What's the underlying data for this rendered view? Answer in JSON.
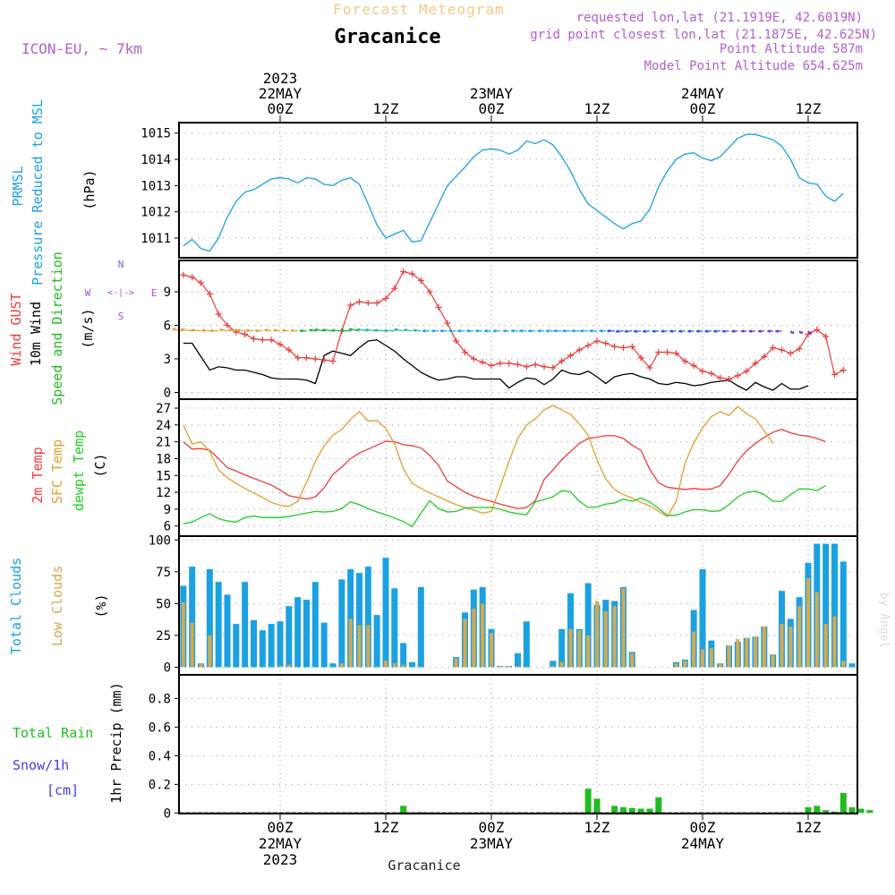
{
  "header": {
    "product": "Forecast Meteogram",
    "location": "Gracanice",
    "model": "ICON-EU, ~ 7km",
    "requested": "requested lon,lat (21.1919E, 42.6019N)",
    "gridpoint": "grid point closest lon,lat (21.1875E, 42.625N)",
    "point_alt": "Point Altitude 587m",
    "model_alt": "Model Point Altitude 654.625m",
    "footer_location": "Gracanice",
    "watermark": "by Angel"
  },
  "colors": {
    "pressure": "#1ba1e2",
    "gust": "#ee3b3b",
    "wind": "#000000",
    "windtext": "#22bb22",
    "temp2m": "#ee3b3b",
    "sfctemp": "#e0a030",
    "dewpt": "#22cc22",
    "totalcloud": "#1ba1e2",
    "lowcloud": "#d4aa50",
    "rain": "#22bb22",
    "snow": "#4040ee",
    "header": "#b060d0",
    "title_faint": "#f0cc88",
    "compass": "#a050e0"
  },
  "time_axis": {
    "top": [
      {
        "x": 0,
        "lines": [
          "2023",
          "22MAY",
          "00Z"
        ]
      },
      {
        "x": 12,
        "lines": [
          "12Z"
        ]
      },
      {
        "x": 24,
        "lines": [
          "23MAY",
          "00Z"
        ]
      },
      {
        "x": 36,
        "lines": [
          "12Z"
        ]
      },
      {
        "x": 48,
        "lines": [
          "24MAY",
          "00Z"
        ]
      },
      {
        "x": 60,
        "lines": [
          "12Z"
        ]
      }
    ],
    "bottom": [
      {
        "x": 0,
        "lines": [
          "00Z",
          "22MAY",
          "2023"
        ]
      },
      {
        "x": 12,
        "lines": [
          "12Z"
        ]
      },
      {
        "x": 24,
        "lines": [
          "00Z",
          "23MAY"
        ]
      },
      {
        "x": 36,
        "lines": [
          "12Z"
        ]
      },
      {
        "x": 48,
        "lines": [
          "00Z",
          "24MAY"
        ]
      },
      {
        "x": 60,
        "lines": [
          "12Z"
        ]
      }
    ]
  },
  "compass": {
    "north": "N",
    "south": "S",
    "west": "W",
    "east": "E"
  },
  "chart_data": [
    {
      "type": "line",
      "id": "pressure",
      "ylabel": [
        "PRMSL",
        "Pressure Reduced to MSL"
      ],
      "unit": "(hPa)",
      "yticks": [
        1011,
        1012,
        1013,
        1014,
        1015
      ],
      "ylim": [
        1010.25,
        1015.4
      ],
      "x_start": -11,
      "x_step": 1,
      "series": [
        {
          "values": [
            1010.7,
            1010.95,
            1010.6,
            1010.5,
            1011.0,
            1011.8,
            1012.4,
            1012.75,
            1012.85,
            1013.05,
            1013.25,
            1013.3,
            1013.25,
            1013.1,
            1013.3,
            1013.25,
            1013.05,
            1013.0,
            1013.2,
            1013.3,
            1013.05,
            1012.3,
            1011.5,
            1011.0,
            1011.15,
            1011.3,
            1010.85,
            1010.9,
            1011.6,
            1012.3,
            1013.0,
            1013.35,
            1013.7,
            1014.1,
            1014.35,
            1014.4,
            1014.35,
            1014.2,
            1014.35,
            1014.7,
            1014.6,
            1014.75,
            1014.55,
            1014.1,
            1013.55,
            1012.85,
            1012.3,
            1012.05,
            1011.8,
            1011.55,
            1011.35,
            1011.55,
            1011.65,
            1012.1,
            1012.95,
            1013.55,
            1014.0,
            1014.2,
            1014.25,
            1014.05,
            1013.95,
            1014.1,
            1014.45,
            1014.8,
            1014.95,
            1014.95,
            1014.85,
            1014.75,
            1014.5,
            1014.0,
            1013.3,
            1013.1,
            1013.05,
            1012.6,
            1012.4,
            1012.7
          ]
        }
      ]
    },
    {
      "type": "line",
      "id": "wind",
      "ylabel": [
        "Wind GUST",
        "10m Wind",
        "Speed and Direction"
      ],
      "unit": "(m/s)",
      "yticks": [
        0,
        3,
        6,
        9
      ],
      "ylim": [
        -0.6,
        11.8
      ],
      "x_start": -11,
      "x_step": 1,
      "series": [
        {
          "name": "Wind GUST",
          "values": [
            10.5,
            10.3,
            9.8,
            8.8,
            7.0,
            6.0,
            5.4,
            5.2,
            4.8,
            4.7,
            4.7,
            4.3,
            3.8,
            3.1,
            3.1,
            3.0,
            2.9,
            2.8,
            5.5,
            7.8,
            8.1,
            8.0,
            8.0,
            8.4,
            9.3,
            10.8,
            10.6,
            10.0,
            9.0,
            7.6,
            6.2,
            4.6,
            3.6,
            3.0,
            2.7,
            2.4,
            2.6,
            2.6,
            2.5,
            2.3,
            2.5,
            2.3,
            2.2,
            2.8,
            3.3,
            3.8,
            4.2,
            4.6,
            4.4,
            4.1,
            4.0,
            4.1,
            3.1,
            2.2,
            3.6,
            3.6,
            3.5,
            2.8,
            2.4,
            1.9,
            1.7,
            1.3,
            1.2,
            1.5,
            1.9,
            2.6,
            3.2,
            4.0,
            3.8,
            3.5,
            3.9,
            5.2,
            5.6,
            5.0,
            1.6,
            2.0
          ]
        },
        {
          "name": "10m Wind",
          "values": [
            4.4,
            4.4,
            3.2,
            2.0,
            2.3,
            2.2,
            2.0,
            2.0,
            1.8,
            1.6,
            1.3,
            1.2,
            1.2,
            1.2,
            1.1,
            0.8,
            3.3,
            3.7,
            3.5,
            3.3,
            4.0,
            4.6,
            4.7,
            4.2,
            3.7,
            3.0,
            2.4,
            1.8,
            1.4,
            1.1,
            1.2,
            1.4,
            1.4,
            1.2,
            1.2,
            1.2,
            1.2,
            0.4,
            0.9,
            1.3,
            1.2,
            0.7,
            1.2,
            2.0,
            1.7,
            1.6,
            1.9,
            1.4,
            0.8,
            1.4,
            1.6,
            1.7,
            1.4,
            1.2,
            0.8,
            0.7,
            0.9,
            0.8,
            0.6,
            0.7,
            0.9,
            1.0,
            1.1,
            0.6,
            0.2,
            0.9,
            0.5,
            0.2,
            0.8,
            0.3,
            0.3,
            0.6
          ]
        },
        {
          "name": "Speed and Direction",
          "values": [
            null
          ]
        }
      ]
    },
    {
      "type": "line",
      "id": "temperature",
      "ylabel": [
        "2m Temp",
        "SFC Temp",
        "dewpt Temp"
      ],
      "unit": "(C)",
      "yticks": [
        6,
        9,
        12,
        15,
        18,
        21,
        24,
        27
      ],
      "ylim": [
        4.2,
        28.6
      ],
      "x_start": -11,
      "x_step": 1,
      "series": [
        {
          "name": "2m Temp",
          "values": [
            21.0,
            19.7,
            19.8,
            19.5,
            18.0,
            16.4,
            15.8,
            15.1,
            14.5,
            13.9,
            13.3,
            12.4,
            11.4,
            11.1,
            10.8,
            11.2,
            12.8,
            15.2,
            16.5,
            18.0,
            19.0,
            19.7,
            20.4,
            21.1,
            21.0,
            20.5,
            20.3,
            19.9,
            18.6,
            16.8,
            14.0,
            13.0,
            12.0,
            11.3,
            10.8,
            10.4,
            9.9,
            9.5,
            9.1,
            9.3,
            10.5,
            14.3,
            16.0,
            17.8,
            19.3,
            20.7,
            21.6,
            21.8,
            22.1,
            22.1,
            21.6,
            20.4,
            19.5,
            16.1,
            13.7,
            12.9,
            12.7,
            12.5,
            12.7,
            12.5,
            12.6,
            13.2,
            15.2,
            17.6,
            19.4,
            20.7,
            21.8,
            22.7,
            23.2,
            22.6,
            22.2,
            22.0,
            21.6,
            21.0
          ]
        },
        {
          "name": "SFC Temp",
          "values": [
            24.0,
            20.6,
            21.0,
            19.3,
            16.0,
            14.6,
            13.6,
            12.7,
            11.9,
            11.1,
            10.2,
            9.7,
            9.5,
            10.4,
            13.8,
            17.5,
            20.3,
            22.2,
            23.2,
            25.0,
            26.4,
            24.7,
            24.8,
            23.4,
            20.7,
            16.2,
            13.6,
            12.7,
            11.9,
            11.2,
            10.5,
            9.8,
            9.3,
            8.8,
            8.3,
            8.6,
            13.0,
            17.5,
            21.6,
            24.0,
            25.1,
            26.7,
            27.5,
            26.7,
            25.9,
            24.2,
            22.2,
            17.8,
            14.4,
            12.5,
            11.6,
            11.0,
            10.2,
            9.6,
            8.6,
            7.7,
            10.4,
            17.2,
            20.8,
            23.5,
            25.5,
            26.4,
            25.7,
            27.3,
            26.0,
            25.1,
            23.0,
            20.7
          ]
        },
        {
          "name": "dewpt Temp",
          "values": [
            6.4,
            6.7,
            7.5,
            8.2,
            7.3,
            6.9,
            6.7,
            7.5,
            7.8,
            7.5,
            7.5,
            7.5,
            7.7,
            8.0,
            8.3,
            8.6,
            8.5,
            8.6,
            9.1,
            10.3,
            9.8,
            9.1,
            8.5,
            8.0,
            7.4,
            6.8,
            5.9,
            8.3,
            10.5,
            9.1,
            8.5,
            8.6,
            9.2,
            9.3,
            9.3,
            9.3,
            9.0,
            8.5,
            8.2,
            8.0,
            10.3,
            10.7,
            11.2,
            12.3,
            12.1,
            10.4,
            9.3,
            9.4,
            9.9,
            10.1,
            10.8,
            10.4,
            11.0,
            10.3,
            9.1,
            7.9,
            7.9,
            8.5,
            8.9,
            8.9,
            8.6,
            8.7,
            9.8,
            11.2,
            12.0,
            12.2,
            11.6,
            10.4,
            10.4,
            11.6,
            12.6,
            12.6,
            12.3,
            13.2
          ]
        }
      ]
    },
    {
      "type": "bar",
      "id": "clouds",
      "ylabel": [
        "Total Clouds",
        "Low Clouds"
      ],
      "unit": "(%)",
      "yticks": [
        0,
        25,
        50,
        75,
        100
      ],
      "ylim": [
        -6,
        103
      ],
      "x_start": -11,
      "x_step": 1,
      "series": [
        {
          "name": "Total Clouds",
          "values": [
            64,
            79,
            3,
            77,
            67,
            57,
            34,
            67,
            37,
            29,
            34,
            36,
            48,
            55,
            53,
            67,
            35,
            3,
            69,
            77,
            74,
            79,
            41,
            86,
            62,
            19,
            4,
            63,
            0,
            0,
            0,
            8,
            43,
            61,
            63,
            30,
            1,
            1,
            11,
            36,
            0,
            0,
            5,
            30,
            58,
            30,
            66,
            49,
            53,
            52,
            63,
            12,
            0,
            0,
            0,
            0,
            4,
            6,
            45,
            77,
            21,
            3,
            17,
            20,
            23,
            24,
            32,
            10,
            60,
            38,
            55,
            82,
            97,
            97,
            97,
            83,
            3
          ]
        },
        {
          "name": "Low Clouds",
          "values": [
            51,
            35,
            3,
            25,
            0,
            0,
            0,
            0,
            0,
            0,
            0,
            1,
            2,
            0,
            0,
            0,
            0,
            0,
            3,
            38,
            33,
            33,
            0,
            5,
            3,
            2,
            0,
            0,
            0,
            0,
            0,
            7,
            38,
            46,
            50,
            27,
            1,
            1,
            1,
            0,
            0,
            0,
            1,
            4,
            30,
            29,
            25,
            52,
            44,
            48,
            62,
            11,
            0,
            0,
            0,
            0,
            3,
            5,
            28,
            14,
            15,
            3,
            17,
            22,
            23,
            24,
            32,
            10,
            34,
            32,
            48,
            70,
            59,
            34,
            40,
            5,
            0
          ]
        }
      ]
    },
    {
      "type": "bar",
      "id": "precip",
      "ylabel": [
        "1hr Precip (mm)"
      ],
      "legend": [
        "Total Rain",
        "Snow/1h",
        "[cm]"
      ],
      "unit": "",
      "yticks": [
        0,
        0.2,
        0.4,
        0.6,
        0.8
      ],
      "ylim": [
        -0.004,
        0.965
      ],
      "x_start": -11,
      "x_step": 1,
      "series": [
        {
          "name": "Total Rain",
          "values": [
            0,
            0,
            0,
            0,
            0,
            0,
            0,
            0,
            0,
            0,
            0,
            0,
            0,
            0,
            0,
            0,
            0,
            0,
            0,
            0,
            0,
            0,
            0,
            0,
            0,
            0.05,
            0,
            0.005,
            0,
            0,
            0,
            0,
            0,
            0,
            0,
            0,
            0,
            0,
            0,
            0,
            0,
            0,
            0,
            0,
            0,
            0,
            0.17,
            0.1,
            0,
            0.05,
            0.04,
            0.035,
            0.03,
            0.03,
            0.11,
            0,
            0,
            0,
            0,
            0,
            0,
            0,
            0,
            0,
            0,
            0,
            0,
            0,
            0,
            0,
            0,
            0.04,
            0.05,
            0.02,
            0.01,
            0.14,
            0.04,
            0.03,
            0.02
          ]
        },
        {
          "name": "Snow/1h",
          "values": [
            0,
            0,
            0,
            0,
            0,
            0,
            0,
            0,
            0,
            0,
            0,
            0,
            0,
            0,
            0,
            0,
            0,
            0,
            0,
            0,
            0,
            0,
            0,
            0,
            0,
            0,
            0,
            0,
            0,
            0,
            0,
            0,
            0,
            0,
            0,
            0,
            0,
            0,
            0,
            0,
            0,
            0,
            0,
            0,
            0,
            0,
            0,
            0,
            0,
            0,
            0,
            0,
            0,
            0,
            0,
            0,
            0,
            0,
            0,
            0,
            0,
            0,
            0,
            0,
            0,
            0,
            0,
            0,
            0,
            0,
            0,
            0,
            0,
            0,
            0,
            0,
            0,
            0,
            0
          ]
        }
      ]
    }
  ]
}
